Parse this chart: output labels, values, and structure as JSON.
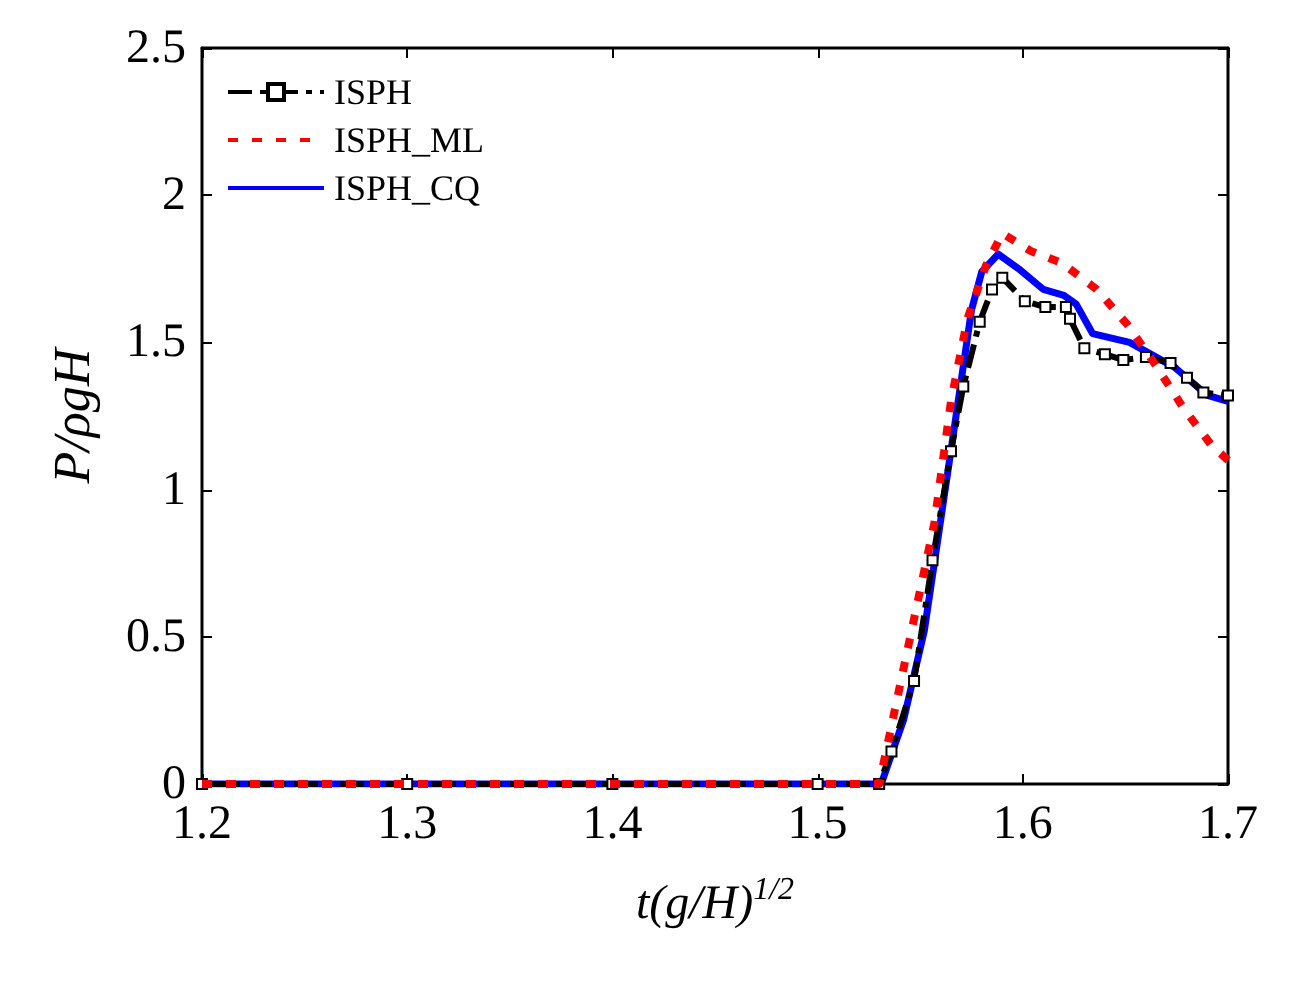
{
  "chart_data": {
    "type": "line",
    "xlabel": "t(g/H)$^{1/2}$",
    "ylabel": "P/ρgH",
    "xlim": [
      1.2,
      1.7
    ],
    "xticks": [
      1.2,
      1.3,
      1.4,
      1.5,
      1.6,
      1.7
    ],
    "ylim": [
      0,
      2.5
    ],
    "yticks": [
      0,
      0.5,
      1,
      1.5,
      2,
      2.5
    ],
    "grid": false,
    "legend": "top left",
    "series": [
      {
        "name": "ISPH",
        "color": "#000000",
        "marker": "square",
        "line_style": "dashed",
        "x": [
          1.2,
          1.3,
          1.4,
          1.5,
          1.53,
          1.536,
          1.547,
          1.556,
          1.565,
          1.571,
          1.579,
          1.585,
          1.59,
          1.601,
          1.611,
          1.621,
          1.623,
          1.63,
          1.64,
          1.649,
          1.66,
          1.672,
          1.68,
          1.688,
          1.7
        ],
        "values": [
          0,
          0,
          0,
          0,
          0,
          0.11,
          0.35,
          0.76,
          1.13,
          1.35,
          1.57,
          1.68,
          1.72,
          1.64,
          1.62,
          1.62,
          1.58,
          1.48,
          1.46,
          1.44,
          1.45,
          1.43,
          1.38,
          1.33,
          1.32
        ]
      },
      {
        "name": "ISPH_ML",
        "color": "#ff0000",
        "line_style": "dotted",
        "x": [
          1.2,
          1.3,
          1.4,
          1.5,
          1.53,
          1.54,
          1.557,
          1.565,
          1.573,
          1.582,
          1.59,
          1.604,
          1.619,
          1.636,
          1.651,
          1.665,
          1.678,
          1.692,
          1.7
        ],
        "values": [
          0,
          0,
          0,
          0,
          0,
          0.33,
          0.89,
          1.3,
          1.58,
          1.76,
          1.87,
          1.81,
          1.77,
          1.68,
          1.56,
          1.42,
          1.28,
          1.15,
          1.1
        ]
      },
      {
        "name": "ISPH_CQ",
        "color": "#0000ff",
        "line_style": "solid",
        "x": [
          1.2,
          1.3,
          1.4,
          1.5,
          1.531,
          1.542,
          1.552,
          1.566,
          1.575,
          1.58,
          1.588,
          1.598,
          1.61,
          1.62,
          1.626,
          1.634,
          1.652,
          1.674,
          1.69,
          1.7
        ],
        "values": [
          0,
          0,
          0,
          0,
          0,
          0.22,
          0.52,
          1.18,
          1.61,
          1.74,
          1.8,
          1.75,
          1.68,
          1.66,
          1.63,
          1.53,
          1.5,
          1.415,
          1.32,
          1.3
        ]
      }
    ]
  }
}
